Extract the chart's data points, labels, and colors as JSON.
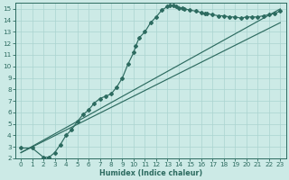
{
  "xlabel": "Humidex (Indice chaleur)",
  "bg_color": "#cceae6",
  "grid_color": "#aad4d0",
  "line_color": "#2d6b60",
  "xlim": [
    -0.5,
    23.5
  ],
  "ylim": [
    2,
    15.5
  ],
  "xticks": [
    0,
    1,
    2,
    3,
    4,
    5,
    6,
    7,
    8,
    9,
    10,
    11,
    12,
    13,
    14,
    15,
    16,
    17,
    18,
    19,
    20,
    21,
    22,
    23
  ],
  "yticks": [
    2,
    3,
    4,
    5,
    6,
    7,
    8,
    9,
    10,
    11,
    12,
    13,
    14,
    15
  ],
  "noisy_x": [
    0,
    1,
    2,
    2.5,
    3,
    3.5,
    4,
    4.5,
    5,
    5.5,
    6,
    6.5,
    7,
    7.5,
    8,
    8.5,
    9,
    9.5,
    10,
    10.2,
    10.5,
    11,
    11.5,
    12,
    12.5,
    13,
    13.2,
    13.5,
    13.8,
    14,
    14.3,
    14.5,
    15,
    15.5,
    16,
    16.3,
    16.5,
    17,
    17.5,
    18,
    18.5,
    19,
    19.5,
    20,
    20.5,
    21,
    21.5,
    22,
    22.5,
    23
  ],
  "noisy_y": [
    2.9,
    2.9,
    2.1,
    2.1,
    2.5,
    3.2,
    4.0,
    4.5,
    5.2,
    5.8,
    6.2,
    6.8,
    7.2,
    7.4,
    7.6,
    8.2,
    9.0,
    10.2,
    11.2,
    11.8,
    12.5,
    13.0,
    13.8,
    14.3,
    14.9,
    15.2,
    15.3,
    15.3,
    15.2,
    15.1,
    15.1,
    15.0,
    14.9,
    14.8,
    14.7,
    14.6,
    14.6,
    14.5,
    14.4,
    14.4,
    14.3,
    14.3,
    14.2,
    14.3,
    14.3,
    14.3,
    14.4,
    14.5,
    14.6,
    14.8
  ],
  "line2_x": [
    0,
    23
  ],
  "line2_y": [
    2.5,
    15.0
  ],
  "line3_x": [
    0,
    23
  ],
  "line3_y": [
    2.5,
    13.8
  ]
}
